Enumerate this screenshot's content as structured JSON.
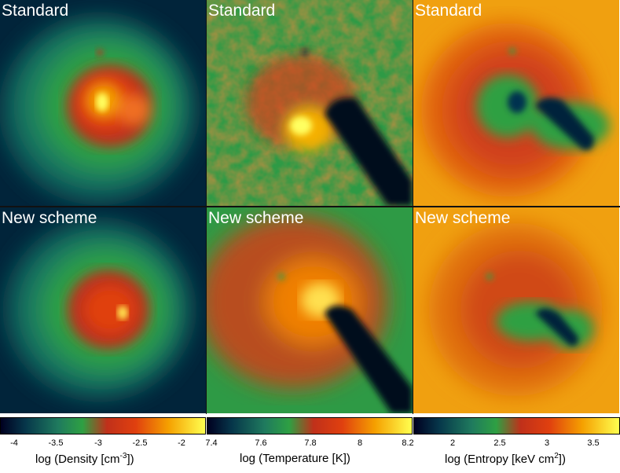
{
  "panels": [
    {
      "label": "Standard"
    },
    {
      "label": "Standard"
    },
    {
      "label": "Standard"
    },
    {
      "label": "New scheme"
    },
    {
      "label": "New scheme"
    },
    {
      "label": "New scheme"
    }
  ],
  "colorbars": [
    {
      "label_prefix": "log (Density [cm",
      "label_sup": "-3",
      "label_suffix": "])",
      "ticks": [
        "-4",
        "-3.5",
        "-3",
        "-2.5",
        "-2"
      ]
    },
    {
      "label_prefix": "log (Temperature [K])",
      "label_sup": "",
      "label_suffix": "",
      "ticks": [
        "7.4",
        "7.6",
        "7.8",
        "8",
        "8.2"
      ]
    },
    {
      "label_prefix": "log (Entropy [keV cm",
      "label_sup": "2",
      "label_suffix": "])",
      "ticks": [
        "2",
        "2.5",
        "3",
        "3.5"
      ]
    }
  ],
  "colors": {
    "cmap": [
      "#000020",
      "#06364a",
      "#1f7a5e",
      "#2ea043",
      "#c0301a",
      "#e0400f",
      "#f5a000",
      "#ffff50"
    ]
  }
}
